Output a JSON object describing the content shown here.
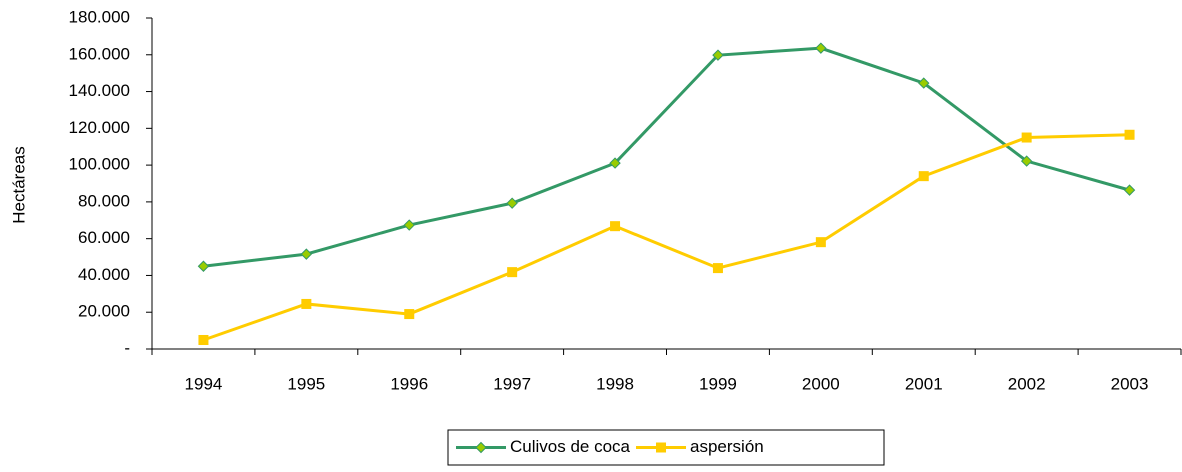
{
  "chart_data": {
    "type": "line",
    "y_label": "Hectáreas",
    "categories": [
      "1994",
      "1995",
      "1996",
      "1997",
      "1998",
      "1999",
      "2000",
      "2001",
      "2002",
      "2003"
    ],
    "series": [
      {
        "name": "Culivos de coca",
        "color": "#339966",
        "marker_color": "#99cc00",
        "marker": "diamond",
        "values": [
          45000,
          51600,
          67400,
          79300,
          101100,
          159800,
          163600,
          144600,
          102200,
          86400
        ]
      },
      {
        "name": "aspersión",
        "color": "#ffcc00",
        "marker_color": "#ffcc00",
        "marker": "square",
        "values": [
          4900,
          24500,
          19000,
          41800,
          66800,
          44000,
          58100,
          94000,
          115000,
          116500
        ]
      }
    ],
    "ylim": [
      0,
      180000
    ],
    "yticks": [
      {
        "value": 0,
        "label": "-"
      },
      {
        "value": 20000,
        "label": "20.000"
      },
      {
        "value": 40000,
        "label": "40.000"
      },
      {
        "value": 60000,
        "label": "60.000"
      },
      {
        "value": 80000,
        "label": "80.000"
      },
      {
        "value": 100000,
        "label": "100.000"
      },
      {
        "value": 120000,
        "label": "120.000"
      },
      {
        "value": 140000,
        "label": "140.000"
      },
      {
        "value": 160000,
        "label": "160.000"
      },
      {
        "value": 180000,
        "label": "180.000"
      }
    ],
    "legend": "bottom"
  }
}
